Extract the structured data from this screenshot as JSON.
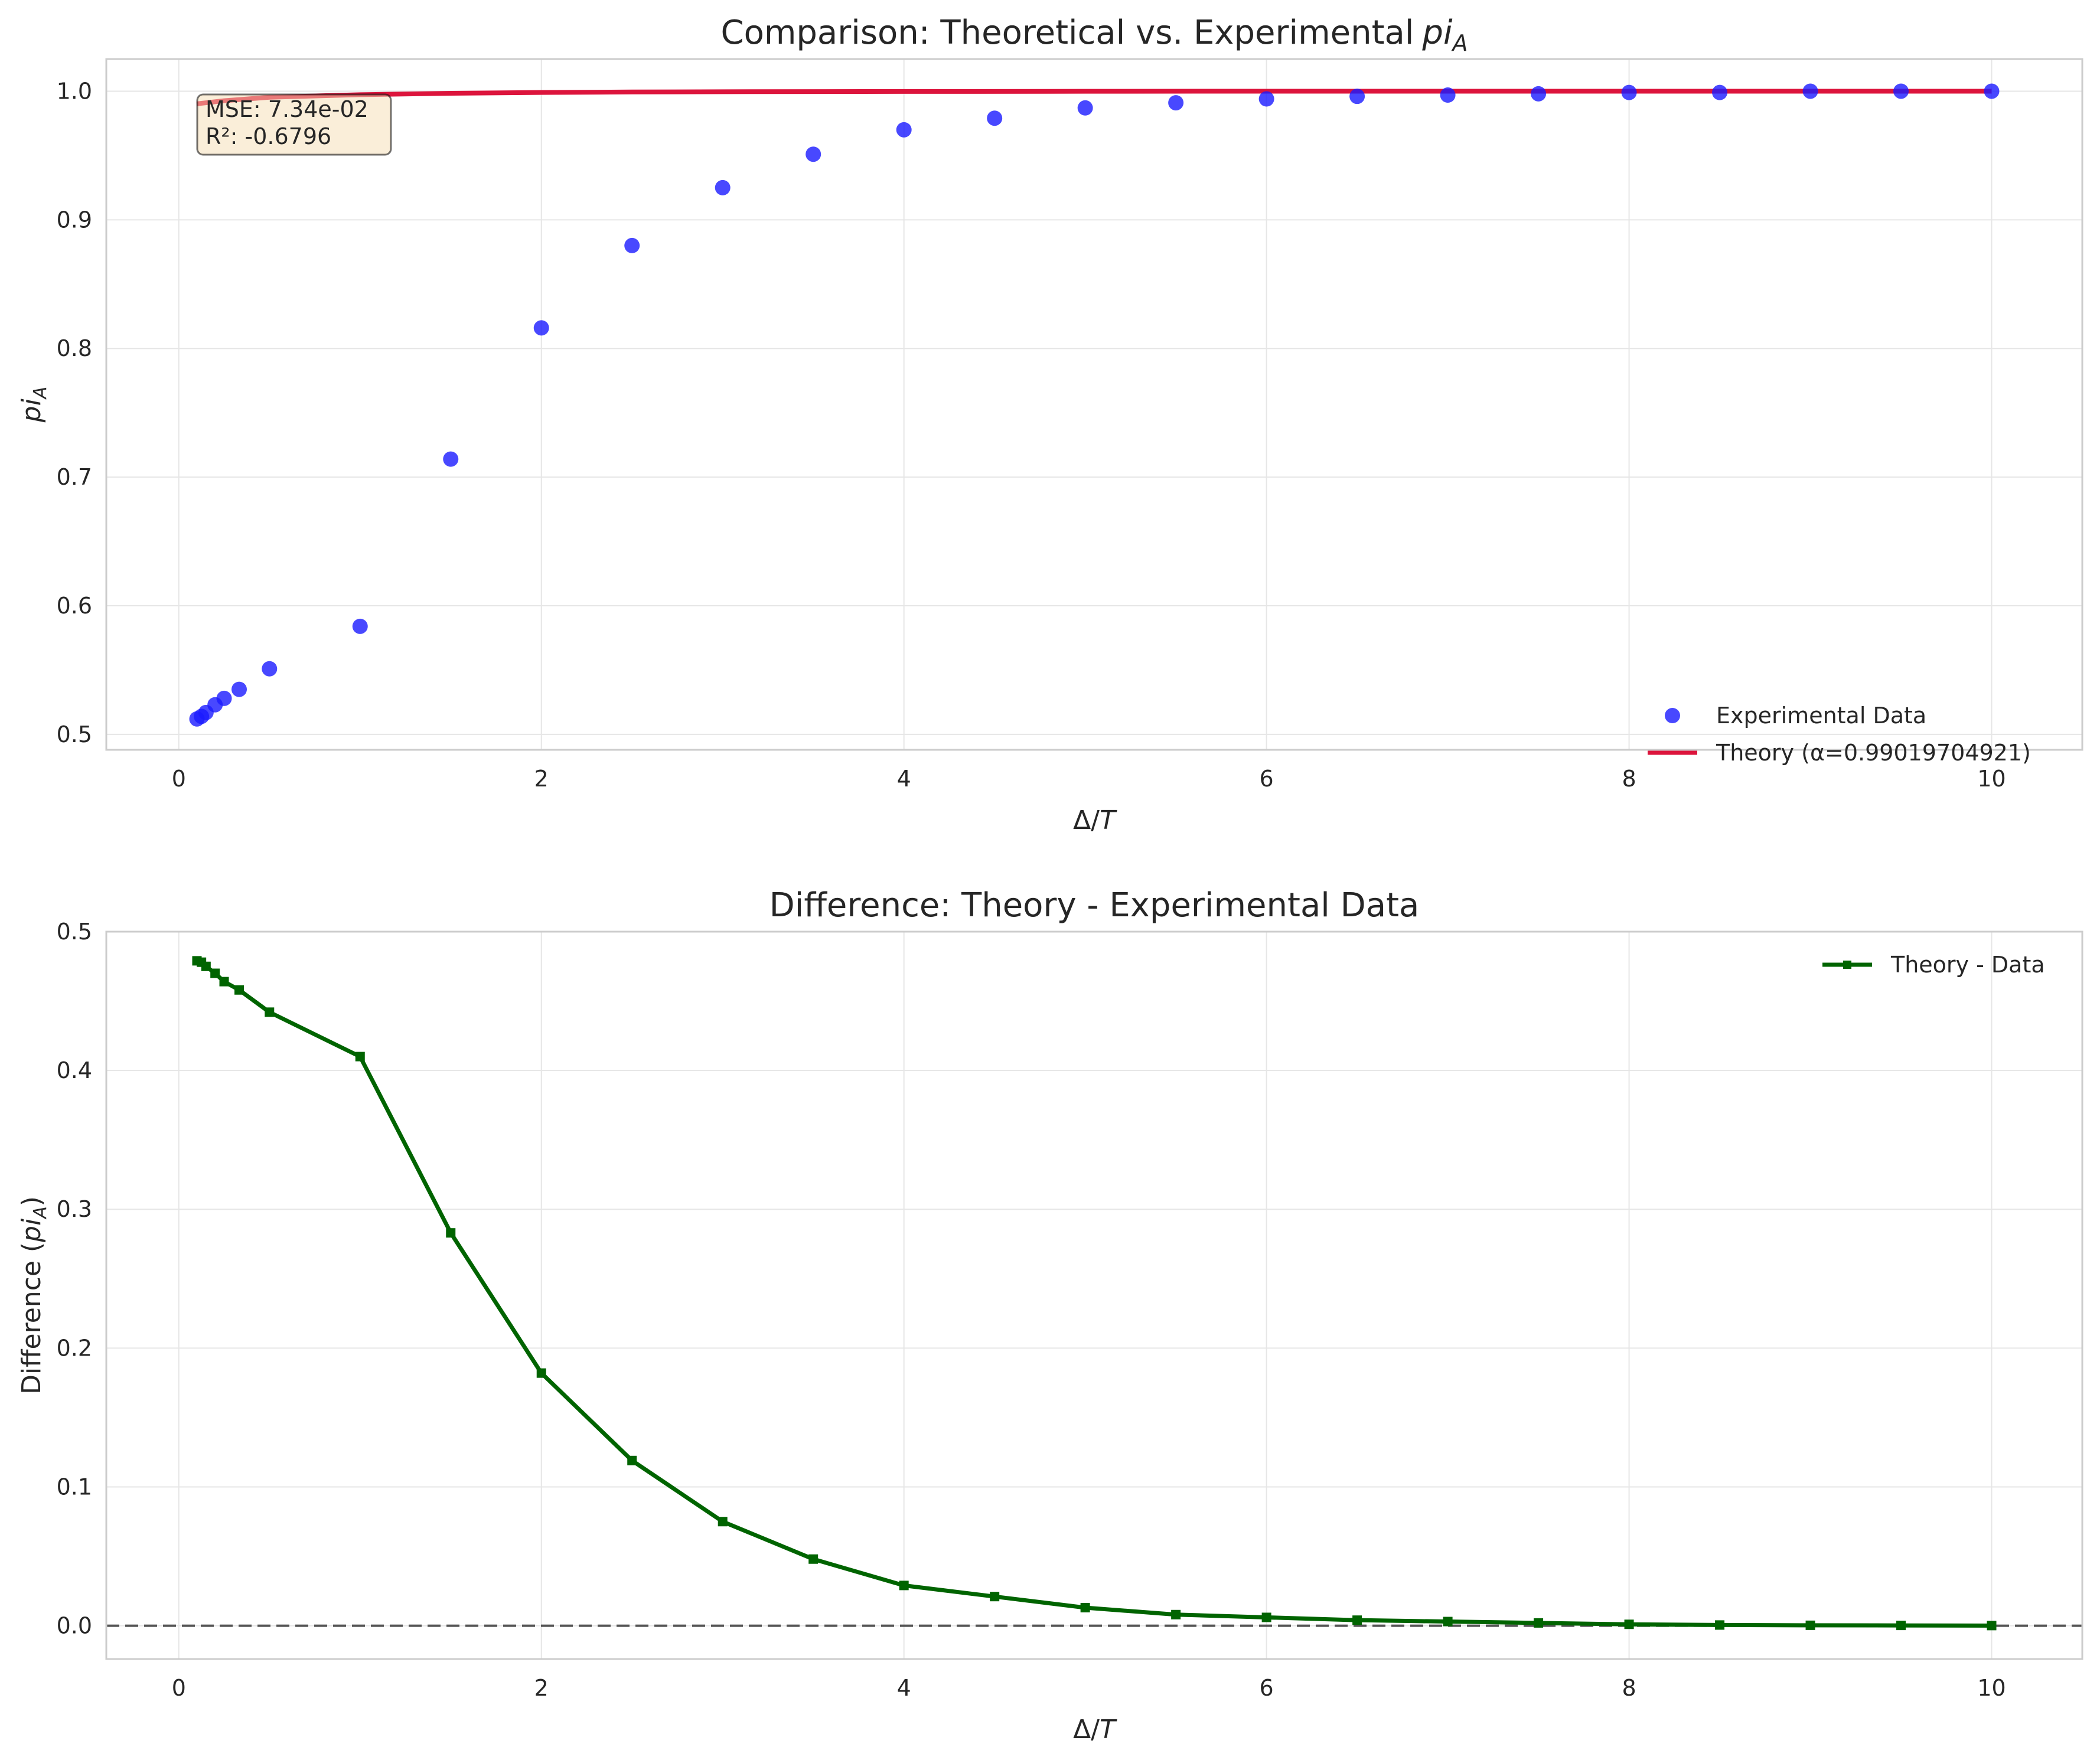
{
  "chart_data": [
    {
      "type": "scatter",
      "title": "Comparison: Theoretical vs. Experimental",
      "title_math": "pi",
      "title_math_sub": "A",
      "xlabel_base": "Δ/",
      "xlabel_math": "T",
      "ylabel_math": "pi",
      "ylabel_sub": "A",
      "xlim": [
        -0.4,
        10.5
      ],
      "ylim": [
        0.488,
        1.025
      ],
      "xticks": [
        0,
        2,
        4,
        6,
        8,
        10
      ],
      "xtick_labels": [
        "0",
        "2",
        "4",
        "6",
        "8",
        "10"
      ],
      "yticks": [
        0.5,
        0.6,
        0.7,
        0.8,
        0.9,
        1.0
      ],
      "ytick_labels": [
        "0.5",
        "0.6",
        "0.7",
        "0.8",
        "0.9",
        "1.0"
      ],
      "grid": true,
      "legend_position": "lower-right",
      "stats_box": {
        "line1": "MSE: 7.34e-02",
        "line2": "R²: -0.6796"
      },
      "series": [
        {
          "name": "Experimental Data",
          "kind": "scatter",
          "color": "#1a1aff",
          "x": [
            0.1,
            0.125,
            0.15,
            0.2,
            0.25,
            0.333,
            0.5,
            1.0,
            1.5,
            2.0,
            2.5,
            3.0,
            3.5,
            4.0,
            4.5,
            5.0,
            5.5,
            6.0,
            6.5,
            7.0,
            7.5,
            8.0,
            8.5,
            9.0,
            9.5,
            10.0
          ],
          "y": [
            0.512,
            0.514,
            0.517,
            0.523,
            0.528,
            0.535,
            0.551,
            0.584,
            0.714,
            0.816,
            0.88,
            0.925,
            0.951,
            0.97,
            0.979,
            0.987,
            0.991,
            0.994,
            0.996,
            0.997,
            0.998,
            0.999,
            0.999,
            1.0,
            1.0,
            1.0
          ]
        },
        {
          "name": "Theory (α=0.99019704921)",
          "kind": "line",
          "color": "#dc143c",
          "x": [
            0.1,
            0.25,
            0.5,
            1.0,
            1.5,
            2.0,
            2.5,
            3.0,
            4.0,
            5.0,
            6.0,
            7.0,
            8.0,
            9.0,
            10.0
          ],
          "y": [
            0.9902,
            0.9926,
            0.9953,
            0.9973,
            0.9984,
            0.999,
            0.9994,
            0.9996,
            0.9998,
            0.9999,
            1.0,
            1.0,
            1.0,
            1.0,
            1.0
          ]
        }
      ]
    },
    {
      "type": "line",
      "title": "Difference: Theory - Experimental Data",
      "xlabel_base": "Δ/",
      "xlabel_math": "T",
      "ylabel_prefix": "Difference (",
      "ylabel_math": "pi",
      "ylabel_sub": "A",
      "ylabel_suffix": ")",
      "xlim": [
        -0.4,
        10.5
      ],
      "ylim": [
        -0.024,
        0.5
      ],
      "xticks": [
        0,
        2,
        4,
        6,
        8,
        10
      ],
      "xtick_labels": [
        "0",
        "2",
        "4",
        "6",
        "8",
        "10"
      ],
      "yticks": [
        0.0,
        0.1,
        0.2,
        0.3,
        0.4,
        0.5
      ],
      "ytick_labels": [
        "0.0",
        "0.1",
        "0.2",
        "0.3",
        "0.4",
        "0.5"
      ],
      "grid": true,
      "legend_position": "upper-right",
      "reference_line": {
        "y": 0.0,
        "style": "dashed",
        "color": "#555555"
      },
      "series": [
        {
          "name": "Theory - Data",
          "kind": "line-marker",
          "color": "#006400",
          "x": [
            0.1,
            0.125,
            0.15,
            0.2,
            0.25,
            0.333,
            0.5,
            1.0,
            1.5,
            2.0,
            2.5,
            3.0,
            3.5,
            4.0,
            4.5,
            5.0,
            5.5,
            6.0,
            6.5,
            7.0,
            7.5,
            8.0,
            8.5,
            9.0,
            9.5,
            10.0
          ],
          "y": [
            0.479,
            0.478,
            0.475,
            0.47,
            0.464,
            0.458,
            0.442,
            0.41,
            0.283,
            0.182,
            0.119,
            0.075,
            0.048,
            0.029,
            0.021,
            0.013,
            0.008,
            0.006,
            0.004,
            0.003,
            0.002,
            0.001,
            0.0005,
            0.0003,
            0.0002,
            0.0001
          ]
        }
      ]
    }
  ]
}
